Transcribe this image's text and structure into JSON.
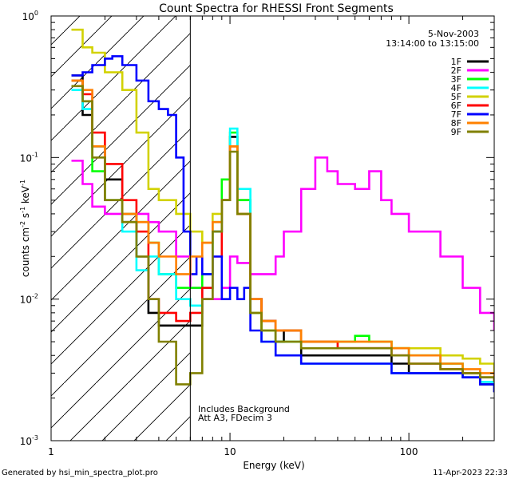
{
  "chart_data": {
    "type": "line",
    "title": "Count Spectra for RHESSI Front Segments",
    "xlabel": "Energy (keV)",
    "ylabel": "counts cm",
    "ylabel_parts": [
      "counts cm",
      "-2",
      " s",
      "-1",
      " keV",
      "-1"
    ],
    "xscale": "log",
    "yscale": "log",
    "xlim": [
      1.0,
      300.0
    ],
    "ylim": [
      0.001,
      1.0
    ],
    "x_ticks": [
      {
        "value": 10,
        "label": "10"
      },
      {
        "value": 100,
        "label": "100"
      }
    ],
    "x_tick_label_1": "1",
    "y_ticks": [
      {
        "value": 0.001,
        "base": "10",
        "exp": "-3"
      },
      {
        "value": 0.01,
        "base": "10",
        "exp": "-2"
      },
      {
        "value": 0.1,
        "base": "10",
        "exp": "-1"
      },
      {
        "value": 1.0,
        "base": "10",
        "exp": "0"
      }
    ],
    "legend_position": "top-right",
    "info_lines": [
      "5-Nov-2003",
      "13:14:00 to 13:15:00"
    ],
    "annotations": [
      "Includes Background",
      "Att A3, FDecim 3"
    ],
    "shaded_region": {
      "x": [
        1.0,
        6.0
      ],
      "pattern": "diagonal-hatch"
    },
    "threshold_line_x": 6.0,
    "footer_left": "Generated by hsi_min_spectra_plot.pro",
    "footer_right": "11-Apr-2023 22:33",
    "series": [
      {
        "name": "1F",
        "color": "#000000",
        "x": [
          1.3,
          1.5,
          1.7,
          2.0,
          2.5,
          3.0,
          3.5,
          4.0,
          5.0,
          6.0,
          7.0,
          8.0,
          9.0,
          10.0,
          11.0,
          13.0,
          15.0,
          18.0,
          20.0,
          25.0,
          30.0,
          40.0,
          50.0,
          60.0,
          80.0,
          100.0,
          150.0,
          200.0,
          250.0,
          300.0
        ],
        "y": [
          0.38,
          0.2,
          0.12,
          0.07,
          0.035,
          0.02,
          0.008,
          0.0065,
          0.0065,
          0.0065,
          0.01,
          0.03,
          0.05,
          0.14,
          0.05,
          0.01,
          0.007,
          0.005,
          0.006,
          0.004,
          0.004,
          0.004,
          0.004,
          0.004,
          0.0035,
          0.003,
          0.003,
          0.0028,
          0.0025,
          0.0022
        ]
      },
      {
        "name": "2F",
        "color": "#ff00ff",
        "x": [
          1.3,
          1.5,
          1.7,
          2.0,
          2.5,
          3.0,
          3.5,
          4.0,
          5.0,
          6.0,
          7.0,
          8.0,
          9.0,
          10.0,
          11.0,
          13.0,
          15.0,
          18.0,
          20.0,
          25.0,
          30.0,
          35.0,
          40.0,
          50.0,
          60.0,
          70.0,
          80.0,
          100.0,
          150.0,
          200.0,
          250.0,
          300.0
        ],
        "y": [
          0.095,
          0.065,
          0.045,
          0.04,
          0.04,
          0.04,
          0.035,
          0.03,
          0.02,
          0.012,
          0.01,
          0.01,
          0.012,
          0.02,
          0.018,
          0.015,
          0.015,
          0.02,
          0.03,
          0.06,
          0.1,
          0.08,
          0.065,
          0.06,
          0.08,
          0.05,
          0.04,
          0.03,
          0.02,
          0.012,
          0.008,
          0.006
        ]
      },
      {
        "name": "3F",
        "color": "#00ff00",
        "x": [
          1.3,
          1.5,
          1.7,
          2.0,
          2.5,
          3.0,
          3.5,
          4.0,
          5.0,
          6.0,
          7.0,
          8.0,
          9.0,
          10.0,
          11.0,
          13.0,
          15.0,
          18.0,
          20.0,
          25.0,
          30.0,
          40.0,
          50.0,
          60.0,
          80.0,
          100.0,
          150.0,
          200.0,
          250.0,
          300.0
        ],
        "y": [
          0.35,
          0.25,
          0.08,
          0.05,
          0.04,
          0.035,
          0.025,
          0.015,
          0.012,
          0.012,
          0.015,
          0.035,
          0.07,
          0.15,
          0.05,
          0.008,
          0.006,
          0.005,
          0.005,
          0.005,
          0.005,
          0.005,
          0.0055,
          0.005,
          0.0045,
          0.004,
          0.0035,
          0.003,
          0.0028,
          0.0025
        ]
      },
      {
        "name": "4F",
        "color": "#00ffff",
        "x": [
          1.3,
          1.5,
          1.7,
          2.0,
          2.5,
          3.0,
          3.5,
          4.0,
          5.0,
          6.0,
          7.0,
          8.0,
          9.0,
          10.0,
          11.0,
          13.0,
          15.0,
          18.0,
          20.0,
          25.0,
          30.0,
          40.0,
          50.0,
          60.0,
          80.0,
          100.0,
          150.0,
          200.0,
          250.0,
          300.0
        ],
        "y": [
          0.3,
          0.22,
          0.12,
          0.05,
          0.03,
          0.016,
          0.02,
          0.015,
          0.01,
          0.009,
          0.012,
          0.03,
          0.05,
          0.16,
          0.06,
          0.008,
          0.005,
          0.004,
          0.004,
          0.0035,
          0.0035,
          0.0035,
          0.0035,
          0.0035,
          0.003,
          0.003,
          0.003,
          0.0028,
          0.0026,
          0.0024
        ]
      },
      {
        "name": "5F",
        "color": "#d2d200",
        "x": [
          1.3,
          1.5,
          1.7,
          2.0,
          2.5,
          3.0,
          3.5,
          4.0,
          5.0,
          6.0,
          7.0,
          8.0,
          9.0,
          10.0,
          11.0,
          13.0,
          15.0,
          18.0,
          20.0,
          25.0,
          30.0,
          40.0,
          50.0,
          60.0,
          80.0,
          100.0,
          150.0,
          200.0,
          250.0,
          300.0
        ],
        "y": [
          0.8,
          0.6,
          0.55,
          0.4,
          0.3,
          0.15,
          0.06,
          0.05,
          0.04,
          0.03,
          0.025,
          0.04,
          0.05,
          0.12,
          0.04,
          0.008,
          0.006,
          0.006,
          0.006,
          0.005,
          0.005,
          0.005,
          0.005,
          0.005,
          0.0045,
          0.0045,
          0.004,
          0.0038,
          0.0035,
          0.003
        ]
      },
      {
        "name": "6F",
        "color": "#ff0000",
        "x": [
          1.3,
          1.5,
          1.7,
          2.0,
          2.5,
          3.0,
          3.5,
          4.0,
          5.0,
          6.0,
          7.0,
          8.0,
          9.0,
          10.0,
          11.0,
          13.0,
          15.0,
          18.0,
          20.0,
          25.0,
          30.0,
          40.0,
          50.0,
          60.0,
          80.0,
          100.0,
          150.0,
          200.0,
          250.0,
          300.0
        ],
        "y": [
          0.35,
          0.28,
          0.15,
          0.09,
          0.05,
          0.03,
          0.01,
          0.008,
          0.007,
          0.008,
          0.012,
          0.02,
          0.05,
          0.12,
          0.04,
          0.01,
          0.007,
          0.006,
          0.006,
          0.005,
          0.005,
          0.0045,
          0.0045,
          0.0045,
          0.004,
          0.0035,
          0.0032,
          0.003,
          0.0028,
          0.0026
        ]
      },
      {
        "name": "7F",
        "color": "#0000ff",
        "x": [
          1.3,
          1.5,
          1.7,
          2.0,
          2.2,
          2.5,
          3.0,
          3.5,
          4.0,
          4.5,
          5.0,
          5.5,
          6.0,
          6.5,
          7.0,
          8.0,
          9.0,
          10.0,
          11.0,
          12.0,
          13.0,
          15.0,
          18.0,
          20.0,
          25.0,
          30.0,
          40.0,
          50.0,
          60.0,
          80.0,
          100.0,
          150.0,
          200.0,
          250.0,
          300.0
        ],
        "y": [
          0.38,
          0.4,
          0.45,
          0.5,
          0.52,
          0.45,
          0.35,
          0.25,
          0.22,
          0.2,
          0.1,
          0.03,
          0.015,
          0.02,
          0.015,
          0.02,
          0.01,
          0.012,
          0.01,
          0.012,
          0.006,
          0.005,
          0.004,
          0.004,
          0.0035,
          0.0035,
          0.0035,
          0.0035,
          0.0035,
          0.003,
          0.003,
          0.003,
          0.0028,
          0.0025,
          0.0022
        ]
      },
      {
        "name": "8F",
        "color": "#ff8000",
        "x": [
          1.3,
          1.5,
          1.7,
          2.0,
          2.5,
          3.0,
          3.5,
          4.0,
          5.0,
          6.0,
          7.0,
          8.0,
          9.0,
          10.0,
          11.0,
          13.0,
          15.0,
          18.0,
          20.0,
          25.0,
          30.0,
          40.0,
          50.0,
          60.0,
          80.0,
          100.0,
          150.0,
          200.0,
          250.0,
          300.0
        ],
        "y": [
          0.35,
          0.3,
          0.12,
          0.05,
          0.04,
          0.035,
          0.025,
          0.02,
          0.015,
          0.02,
          0.025,
          0.035,
          0.05,
          0.12,
          0.04,
          0.01,
          0.007,
          0.006,
          0.006,
          0.005,
          0.005,
          0.005,
          0.005,
          0.005,
          0.0045,
          0.004,
          0.0035,
          0.0032,
          0.003,
          0.0028
        ]
      },
      {
        "name": "9F",
        "color": "#808000",
        "x": [
          1.3,
          1.5,
          1.7,
          2.0,
          2.5,
          3.0,
          3.5,
          4.0,
          5.0,
          6.0,
          7.0,
          8.0,
          9.0,
          10.0,
          11.0,
          13.0,
          15.0,
          18.0,
          20.0,
          25.0,
          30.0,
          40.0,
          50.0,
          60.0,
          80.0,
          100.0,
          150.0,
          200.0,
          250.0,
          300.0
        ],
        "y": [
          0.32,
          0.25,
          0.1,
          0.05,
          0.035,
          0.02,
          0.01,
          0.005,
          0.0025,
          0.003,
          0.01,
          0.03,
          0.05,
          0.11,
          0.04,
          0.008,
          0.006,
          0.005,
          0.005,
          0.0045,
          0.0045,
          0.0045,
          0.0045,
          0.0045,
          0.004,
          0.0035,
          0.0032,
          0.003,
          0.0028,
          0.0026
        ]
      }
    ]
  }
}
